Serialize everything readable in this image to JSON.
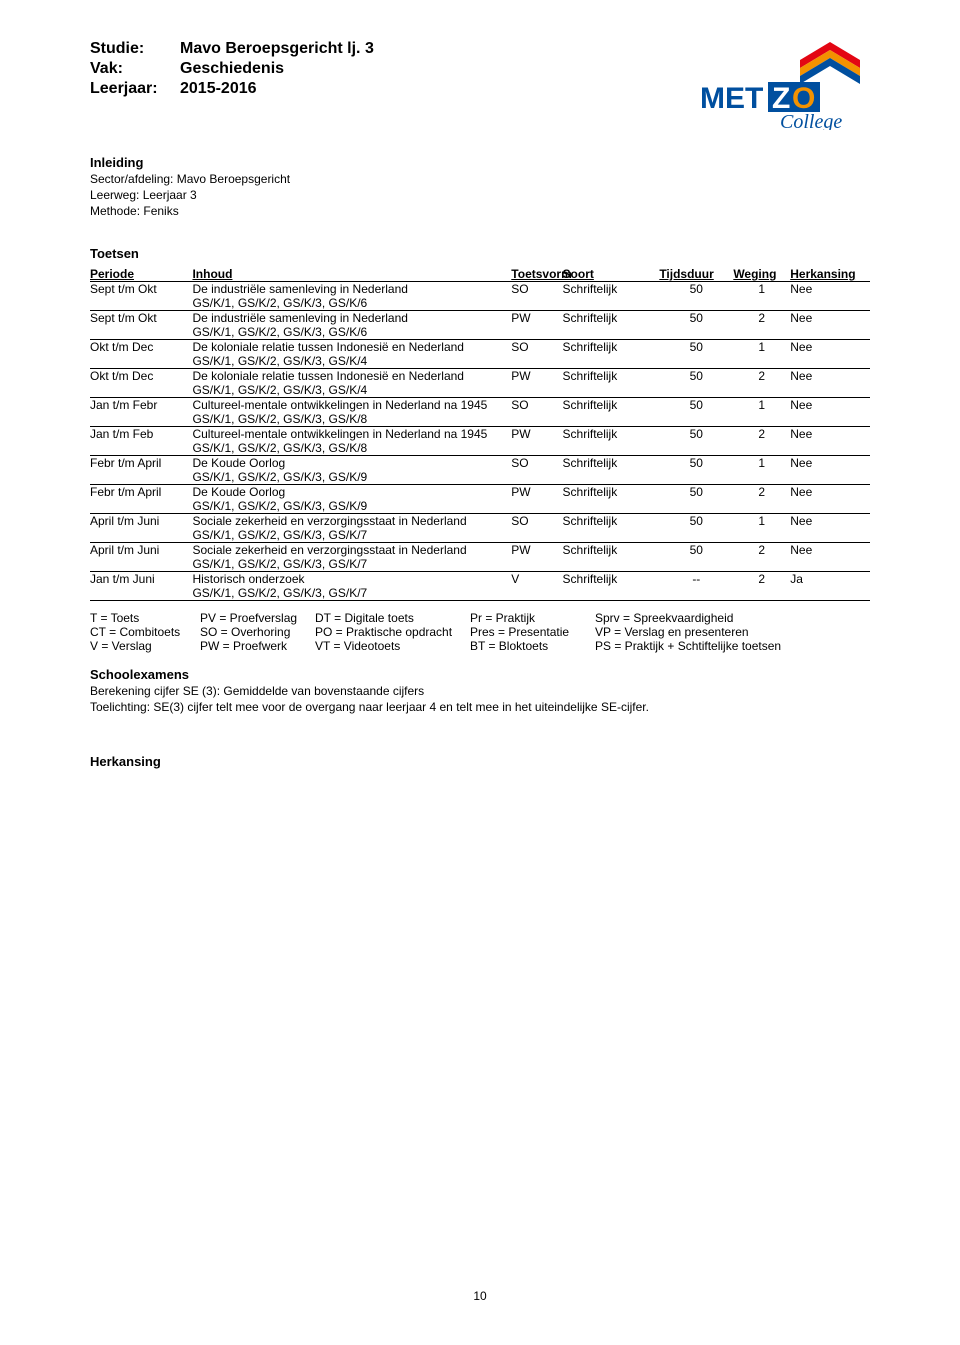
{
  "header": {
    "studie_label": "Studie:",
    "studie_value": "Mavo Beroepsgericht lj. 3",
    "vak_label": "Vak:",
    "vak_value": "Geschiedenis",
    "leerjaar_label": "Leerjaar:",
    "leerjaar_value": "2015-2016"
  },
  "logo": {
    "text_top": "MET",
    "text_o": "Z",
    "text_o2": "O",
    "subtitle": "College",
    "stripe_colors": [
      "#e30613",
      "#f39200",
      "#004f9f",
      "#004f9f"
    ]
  },
  "inleiding": {
    "title": "Inleiding",
    "lines": [
      "Sector/afdeling: Mavo Beroepsgericht",
      "Leerweg: Leerjaar 3",
      "Methode: Feniks"
    ]
  },
  "toetsen": {
    "title": "Toetsen",
    "cols": {
      "periode": "Periode",
      "inhoud": "Inhoud",
      "vorm": "Toetsvorm",
      "soort": "Soort",
      "tijd": "Tijdsduur",
      "weg": "Weging",
      "herk": "Herkansing"
    },
    "rows": [
      {
        "periode": "Sept t/m Okt",
        "inhoud": "De industriële samenleving in Nederland",
        "sub": "GS/K/1, GS/K/2, GS/K/3, GS/K/6",
        "vorm": "SO",
        "soort": "Schriftelijk",
        "tijd": "50",
        "weg": "1",
        "herk": "Nee"
      },
      {
        "periode": "Sept t/m Okt",
        "inhoud": "De industriële samenleving in Nederland",
        "sub": "GS/K/1, GS/K/2, GS/K/3, GS/K/6",
        "vorm": "PW",
        "soort": "Schriftelijk",
        "tijd": "50",
        "weg": "2",
        "herk": "Nee"
      },
      {
        "periode": "Okt t/m Dec",
        "inhoud": "De koloniale relatie tussen Indonesië en Nederland",
        "sub": "GS/K/1, GS/K/2, GS/K/3, GS/K/4",
        "vorm": "SO",
        "soort": "Schriftelijk",
        "tijd": "50",
        "weg": "1",
        "herk": "Nee"
      },
      {
        "periode": "Okt t/m Dec",
        "inhoud": "De koloniale relatie tussen Indonesië en Nederland",
        "sub": "GS/K/1, GS/K/2, GS/K/3, GS/K/4",
        "vorm": "PW",
        "soort": "Schriftelijk",
        "tijd": "50",
        "weg": "2",
        "herk": "Nee"
      },
      {
        "periode": "Jan t/m Febr",
        "inhoud": "Cultureel-mentale ontwikkelingen in Nederland na 1945",
        "sub": "GS/K/1, GS/K/2, GS/K/3, GS/K/8",
        "vorm": "SO",
        "soort": "Schriftelijk",
        "tijd": "50",
        "weg": "1",
        "herk": "Nee"
      },
      {
        "periode": "Jan t/m Feb",
        "inhoud": "Cultureel-mentale ontwikkelingen in Nederland na 1945",
        "sub": "GS/K/1, GS/K/2, GS/K/3, GS/K/8",
        "vorm": "PW",
        "soort": "Schriftelijk",
        "tijd": "50",
        "weg": "2",
        "herk": "Nee"
      },
      {
        "periode": "Febr t/m April",
        "inhoud": "De Koude Oorlog",
        "sub": "GS/K/1, GS/K/2, GS/K/3, GS/K/9",
        "vorm": "SO",
        "soort": "Schriftelijk",
        "tijd": "50",
        "weg": "1",
        "herk": "Nee"
      },
      {
        "periode": "Febr t/m April",
        "inhoud": "De Koude Oorlog",
        "sub": "GS/K/1, GS/K/2, GS/K/3, GS/K/9",
        "vorm": "PW",
        "soort": "Schriftelijk",
        "tijd": "50",
        "weg": "2",
        "herk": "Nee"
      },
      {
        "periode": "April t/m Juni",
        "inhoud": "Sociale zekerheid en verzorgingsstaat in Nederland",
        "sub": "GS/K/1, GS/K/2, GS/K/3, GS/K/7",
        "vorm": "SO",
        "soort": "Schriftelijk",
        "tijd": "50",
        "weg": "1",
        "herk": "Nee"
      },
      {
        "periode": "April t/m Juni",
        "inhoud": "Sociale zekerheid en verzorgingsstaat in Nederland",
        "sub": "GS/K/1, GS/K/2, GS/K/3, GS/K/7",
        "vorm": "PW",
        "soort": "Schriftelijk",
        "tijd": "50",
        "weg": "2",
        "herk": "Nee"
      },
      {
        "periode": "Jan t/m Juni",
        "inhoud": "Historisch onderzoek",
        "sub": "GS/K/1, GS/K/2, GS/K/3, GS/K/7",
        "vorm": "V",
        "soort": "Schriftelijk",
        "tijd": "--",
        "weg": "2",
        "herk": "Ja"
      }
    ]
  },
  "legend": {
    "c1": [
      "T = Toets",
      "CT = Combitoets",
      "V = Verslag"
    ],
    "c2": [
      "PV = Proefverslag",
      "SO = Overhoring",
      "PW = Proefwerk"
    ],
    "c3": [
      "DT = Digitale toets",
      "PO = Praktische opdracht",
      "VT = Videotoets"
    ],
    "c4": [
      "Pr = Praktijk",
      "Pres = Presentatie",
      "BT = Bloktoets"
    ],
    "c5": [
      "Sprv = Spreekvaardigheid",
      "VP = Verslag en presenteren",
      "PS = Praktijk + Schtiftelijke toetsen"
    ]
  },
  "schoolexamens": {
    "title": "Schoolexamens",
    "lines": [
      "Berekening cijfer SE (3): Gemiddelde van bovenstaande cijfers",
      "Toelichting: SE(3) cijfer telt mee voor de overgang naar leerjaar 4 en telt mee in het uiteindelijke SE-cijfer."
    ]
  },
  "herkansing_title": "Herkansing",
  "pagenum": "10"
}
